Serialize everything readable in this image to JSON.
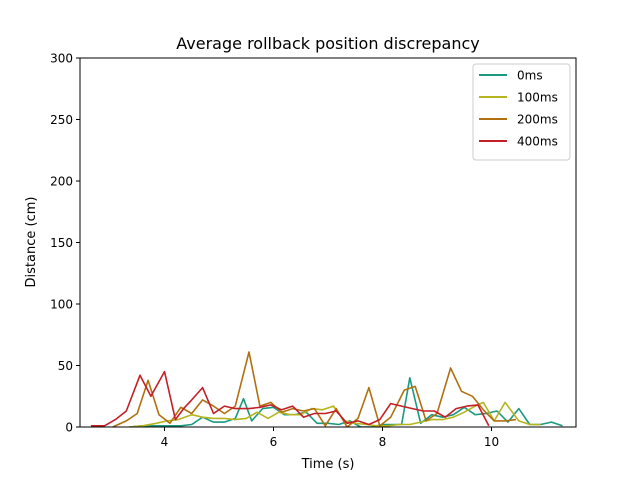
{
  "chart_data": {
    "type": "line",
    "title": "Average rollback position discrepancy",
    "xlabel": "Time (s)",
    "ylabel": "Distance (cm)",
    "xlim": [
      2.45,
      11.55
    ],
    "ylim": [
      0,
      300
    ],
    "xticks": [
      4,
      6,
      8,
      10
    ],
    "yticks": [
      0,
      50,
      100,
      150,
      200,
      250,
      300
    ],
    "grid": false,
    "legend_position": "top-right",
    "series": [
      {
        "name": "0ms",
        "color": "#1a9a80",
        "x": [
          3.35,
          3.6,
          3.85,
          4.1,
          4.3,
          4.5,
          4.7,
          4.9,
          5.1,
          5.3,
          5.45,
          5.6,
          5.8,
          6.0,
          6.2,
          6.4,
          6.6,
          6.8,
          7.0,
          7.2,
          7.4,
          7.6,
          7.8,
          8.0,
          8.2,
          8.35,
          8.5,
          8.7,
          8.9,
          9.1,
          9.3,
          9.5,
          9.7,
          9.9,
          10.1,
          10.3,
          10.5,
          10.7,
          10.9,
          11.1,
          11.3
        ],
        "y": [
          0,
          1,
          1,
          1,
          1,
          2,
          8,
          4,
          4,
          7,
          23,
          5,
          15,
          16,
          10,
          10,
          12,
          3,
          3,
          2,
          5,
          0,
          0,
          2,
          2,
          2,
          40,
          3,
          10,
          8,
          10,
          16,
          10,
          11,
          13,
          4,
          15,
          2,
          2,
          4,
          1
        ]
      },
      {
        "name": "100ms",
        "color": "#b5b51e",
        "x": [
          3.35,
          3.6,
          3.85,
          4.05,
          4.25,
          4.5,
          4.7,
          4.9,
          5.1,
          5.3,
          5.5,
          5.7,
          5.9,
          6.1,
          6.3,
          6.5,
          6.7,
          6.9,
          7.1,
          7.3,
          7.5,
          7.7,
          7.9,
          8.1,
          8.3,
          8.5,
          8.7,
          8.9,
          9.1,
          9.3,
          9.5,
          9.7,
          9.85,
          10.05,
          10.25,
          10.5,
          10.7,
          10.9
        ],
        "y": [
          0,
          1,
          3,
          5,
          6,
          10,
          8,
          7,
          7,
          6,
          7,
          12,
          7,
          12,
          10,
          10,
          15,
          14,
          17,
          5,
          3,
          2,
          1,
          1,
          2,
          2,
          4,
          6,
          6,
          8,
          12,
          17,
          20,
          5,
          20,
          5,
          2,
          2
        ]
      },
      {
        "name": "200ms",
        "color": "#b07010",
        "x": [
          3.05,
          3.3,
          3.5,
          3.7,
          3.9,
          4.1,
          4.3,
          4.5,
          4.7,
          4.9,
          5.1,
          5.3,
          5.55,
          5.75,
          5.95,
          6.15,
          6.35,
          6.55,
          6.75,
          6.95,
          7.15,
          7.35,
          7.55,
          7.75,
          7.95,
          8.15,
          8.4,
          8.6,
          8.8,
          9.0,
          9.25,
          9.45,
          9.65,
          9.85,
          10.05,
          10.25,
          10.45
        ],
        "y": [
          0,
          5,
          11,
          38,
          10,
          3,
          16,
          11,
          22,
          17,
          11,
          17,
          61,
          17,
          20,
          12,
          15,
          13,
          15,
          1,
          15,
          0,
          7,
          32,
          1,
          8,
          30,
          33,
          5,
          11,
          48,
          29,
          25,
          14,
          5,
          5,
          6
        ]
      },
      {
        "name": "400ms",
        "color": "#c41f27",
        "x": [
          2.65,
          2.9,
          3.1,
          3.3,
          3.55,
          3.75,
          4.0,
          4.2,
          4.35,
          4.5,
          4.7,
          4.9,
          5.1,
          5.3,
          5.55,
          5.75,
          5.95,
          6.15,
          6.35,
          6.55,
          6.75,
          6.95,
          7.15,
          7.35,
          7.55,
          7.75,
          7.95,
          8.15,
          8.35,
          8.55,
          8.75,
          8.95,
          9.15,
          9.35,
          9.55,
          9.75,
          9.95
        ],
        "y": [
          1,
          1,
          6,
          13,
          42,
          25,
          45,
          6,
          15,
          22,
          32,
          11,
          17,
          15,
          15,
          16,
          18,
          14,
          17,
          8,
          11,
          11,
          13,
          3,
          5,
          2,
          6,
          19,
          17,
          15,
          13,
          13,
          8,
          15,
          17,
          18,
          1
        ]
      }
    ]
  }
}
